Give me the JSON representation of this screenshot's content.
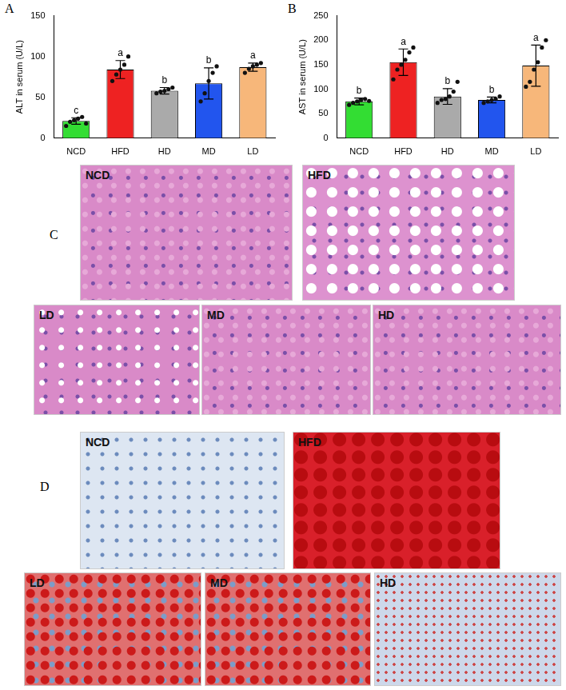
{
  "chart_data": [
    {
      "type": "bar",
      "panel": "A",
      "y_label": "ALT in serum (U/L)",
      "categories": [
        "NCD",
        "HFD",
        "HD",
        "MD",
        "LD"
      ],
      "values": [
        21,
        84,
        58,
        67,
        87
      ],
      "errors": [
        4,
        11,
        4,
        19,
        5
      ],
      "letters": [
        "c",
        "a",
        "b",
        "b",
        "a"
      ],
      "points": [
        [
          15,
          20,
          22,
          24,
          26,
          18
        ],
        [
          70,
          78,
          84,
          90,
          100
        ],
        [
          55,
          57,
          58,
          60,
          62
        ],
        [
          45,
          55,
          70,
          80,
          88
        ],
        [
          80,
          85,
          88,
          90,
          92
        ]
      ],
      "colors": [
        "#33dd33",
        "#ee2222",
        "#aaaaaa",
        "#2255ee",
        "#f7b77a"
      ],
      "ylim": [
        0,
        150
      ],
      "yticks": [
        0,
        50,
        100,
        150
      ],
      "grid": false
    },
    {
      "type": "bar",
      "panel": "B",
      "y_label": "AST in serum (U/L)",
      "categories": [
        "NCD",
        "HFD",
        "HD",
        "MD",
        "LD"
      ],
      "values": [
        75,
        155,
        85,
        78,
        148
      ],
      "errors": [
        7,
        27,
        16,
        6,
        42
      ],
      "letters": [
        "b",
        "a",
        "b",
        "b",
        "a"
      ],
      "points": [
        [
          68,
          72,
          75,
          78,
          80,
          76
        ],
        [
          120,
          140,
          150,
          160,
          175,
          185
        ],
        [
          72,
          78,
          80,
          85,
          95,
          115
        ],
        [
          72,
          75,
          78,
          80,
          85
        ],
        [
          105,
          115,
          140,
          155,
          185,
          200
        ]
      ],
      "colors": [
        "#33dd33",
        "#ee2222",
        "#aaaaaa",
        "#2255ee",
        "#f7b77a"
      ],
      "ylim": [
        0,
        250
      ],
      "yticks": [
        0,
        50,
        100,
        150,
        200,
        250
      ],
      "grid": false
    }
  ],
  "figures": [
    {
      "panel": "C",
      "tiles": [
        "NCD",
        "HFD",
        "LD",
        "MD",
        "HD"
      ]
    },
    {
      "panel": "D",
      "tiles": [
        "NCD",
        "HFD",
        "LD",
        "MD",
        "HD"
      ]
    }
  ]
}
